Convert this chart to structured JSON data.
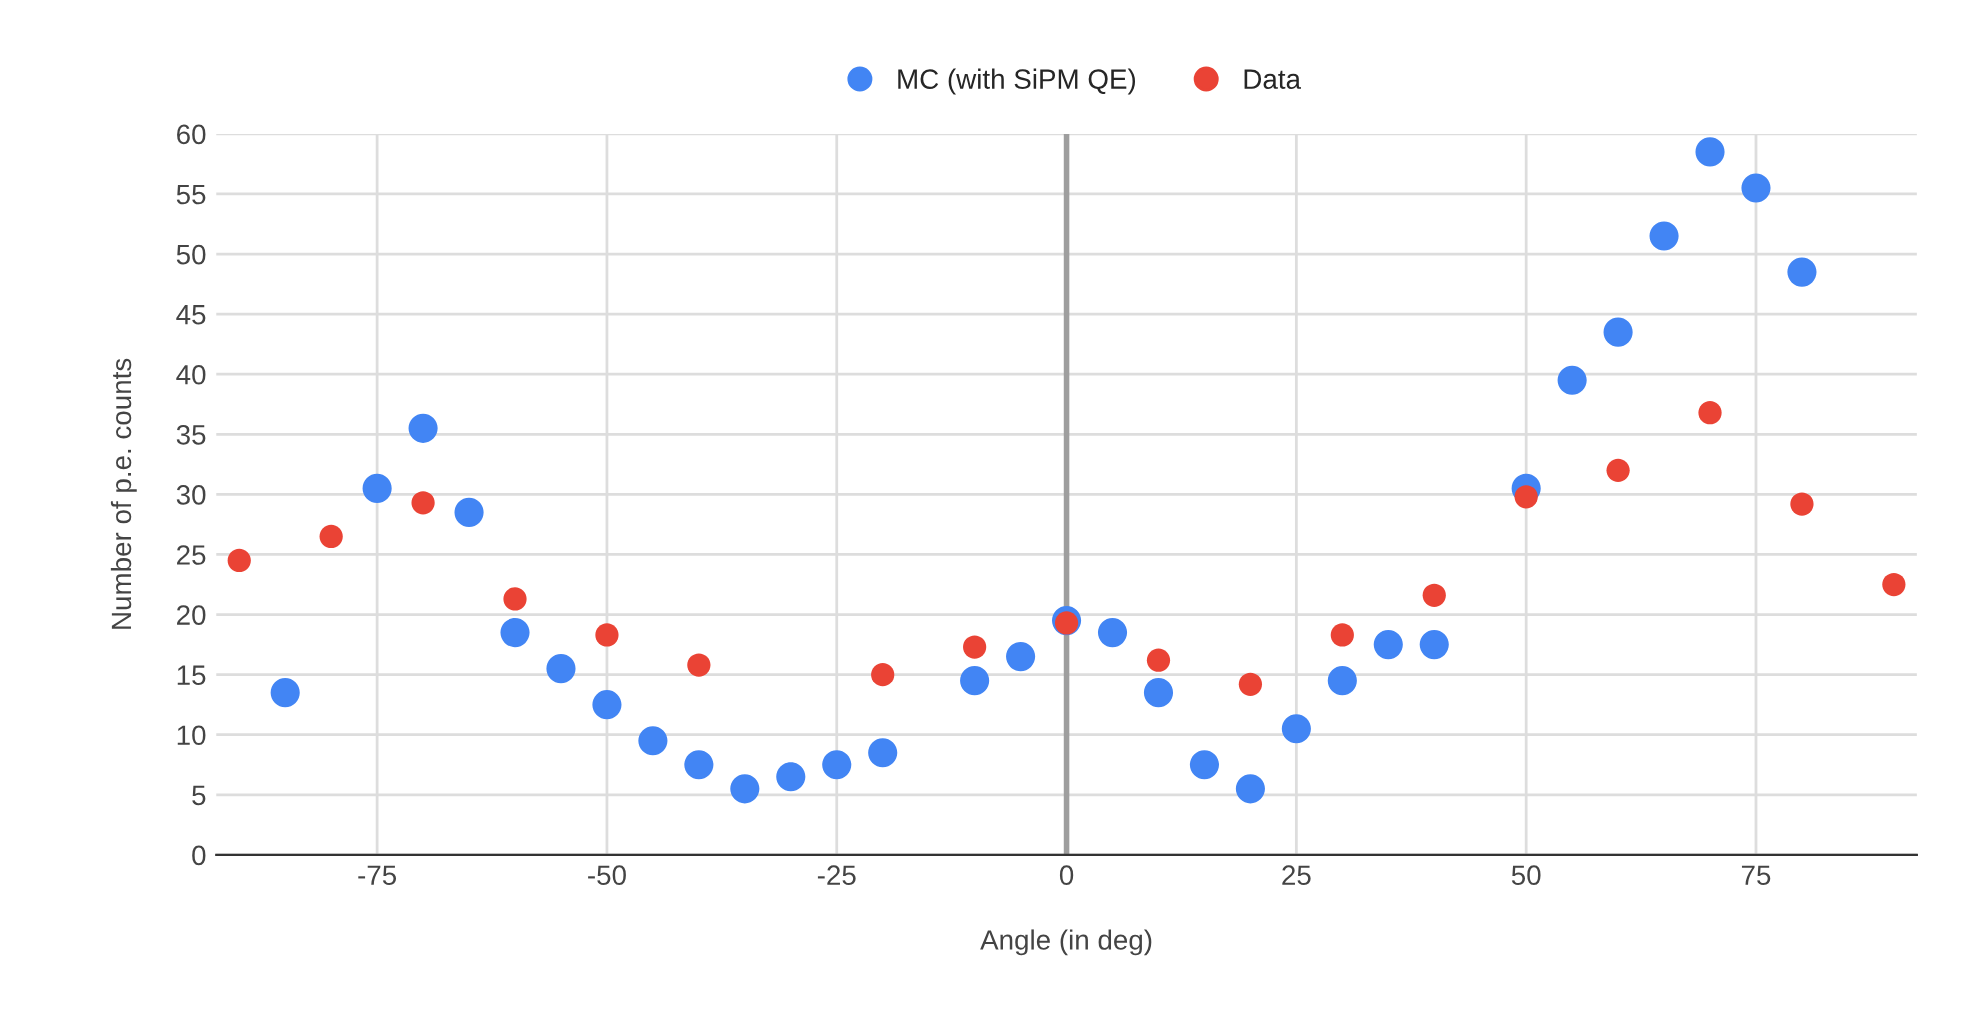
{
  "chart_data": {
    "type": "scatter",
    "xlabel": "Angle (in deg)",
    "ylabel": "Number of p.e. counts",
    "xlim": [
      -92.5,
      92.5
    ],
    "xticks": [
      -75,
      -50,
      -25,
      0,
      25,
      50,
      75
    ],
    "ylim": [
      0,
      60
    ],
    "yticks": [
      0,
      5,
      10,
      15,
      20,
      25,
      30,
      35,
      40,
      45,
      50,
      55,
      60
    ],
    "grid": true,
    "legend": "top",
    "marker": "circle",
    "ref_lines": [
      {
        "axis": "x",
        "value": 0,
        "color": "#9e9e9e"
      }
    ],
    "series": [
      {
        "name": "MC (with SiPM QE)",
        "color": "#4285f4",
        "x": [
          -85,
          -75,
          -70,
          -65,
          -60,
          -55,
          -50,
          -45,
          -40,
          -35,
          -30,
          -25,
          -20,
          -10,
          -5,
          0,
          5,
          10,
          15,
          20,
          25,
          30,
          35,
          40,
          50,
          55,
          60,
          65,
          70,
          75,
          80
        ],
        "values": [
          13.5,
          30.5,
          35.5,
          28.5,
          18.5,
          15.5,
          12.5,
          9.5,
          7.5,
          5.5,
          6.5,
          7.5,
          8.5,
          14.5,
          16.5,
          19.5,
          18.5,
          13.5,
          7.5,
          5.5,
          10.5,
          14.5,
          17.5,
          17.5,
          30.5,
          39.5,
          43.5,
          51.5,
          58.5,
          55.5,
          48.5
        ]
      },
      {
        "name": "Data",
        "color": "#ea4335",
        "x": [
          -90,
          -80,
          -70,
          -60,
          -50,
          -40,
          -20,
          -10,
          0,
          10,
          20,
          30,
          40,
          50,
          60,
          70,
          80,
          90
        ],
        "values": [
          24.5,
          26.5,
          29.3,
          21.3,
          18.3,
          15.8,
          15,
          17.3,
          19.3,
          16.2,
          14.2,
          18.3,
          21.6,
          29.8,
          32,
          36.8,
          29.2,
          22.5
        ]
      }
    ]
  }
}
